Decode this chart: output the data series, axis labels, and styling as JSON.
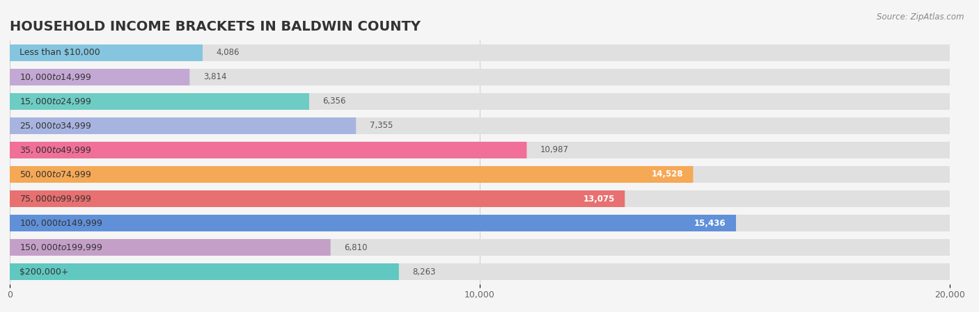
{
  "title": "HOUSEHOLD INCOME BRACKETS IN BALDWIN COUNTY",
  "source": "Source: ZipAtlas.com",
  "categories": [
    "Less than $10,000",
    "$10,000 to $14,999",
    "$15,000 to $24,999",
    "$25,000 to $34,999",
    "$35,000 to $49,999",
    "$50,000 to $74,999",
    "$75,000 to $99,999",
    "$100,000 to $149,999",
    "$150,000 to $199,999",
    "$200,000+"
  ],
  "values": [
    4086,
    3814,
    6356,
    7355,
    10987,
    14528,
    13075,
    15436,
    6810,
    8263
  ],
  "bar_colors": [
    "#85C5E0",
    "#C4A8D4",
    "#6DCDC4",
    "#A8B4E0",
    "#F07098",
    "#F5A855",
    "#E87070",
    "#6090D8",
    "#C4A0C8",
    "#60C8C0"
  ],
  "xlim": [
    0,
    20000
  ],
  "xticks": [
    0,
    10000,
    20000
  ],
  "xtick_labels": [
    "0",
    "10,000",
    "20,000"
  ],
  "background_color": "#f5f5f5",
  "bar_bg_color": "#e0e0e0",
  "title_fontsize": 14,
  "label_fontsize": 9,
  "value_fontsize": 8.5,
  "source_fontsize": 8.5,
  "value_threshold": 11000
}
